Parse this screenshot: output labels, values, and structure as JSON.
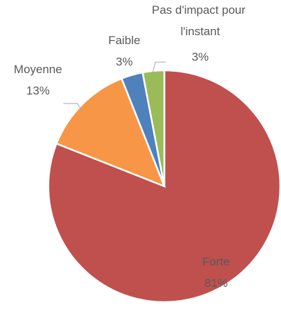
{
  "chart_data": {
    "type": "pie",
    "categories": [
      "Forte",
      "Moyenne",
      "Faible",
      "Pas d'impact pour l'instant"
    ],
    "values": [
      81,
      13,
      3,
      3
    ],
    "value_labels": [
      "81%",
      "13%",
      "3%",
      "3%"
    ],
    "colors": [
      "#c0504d",
      "#f79646",
      "#4f81bd",
      "#9bbb59"
    ]
  }
}
